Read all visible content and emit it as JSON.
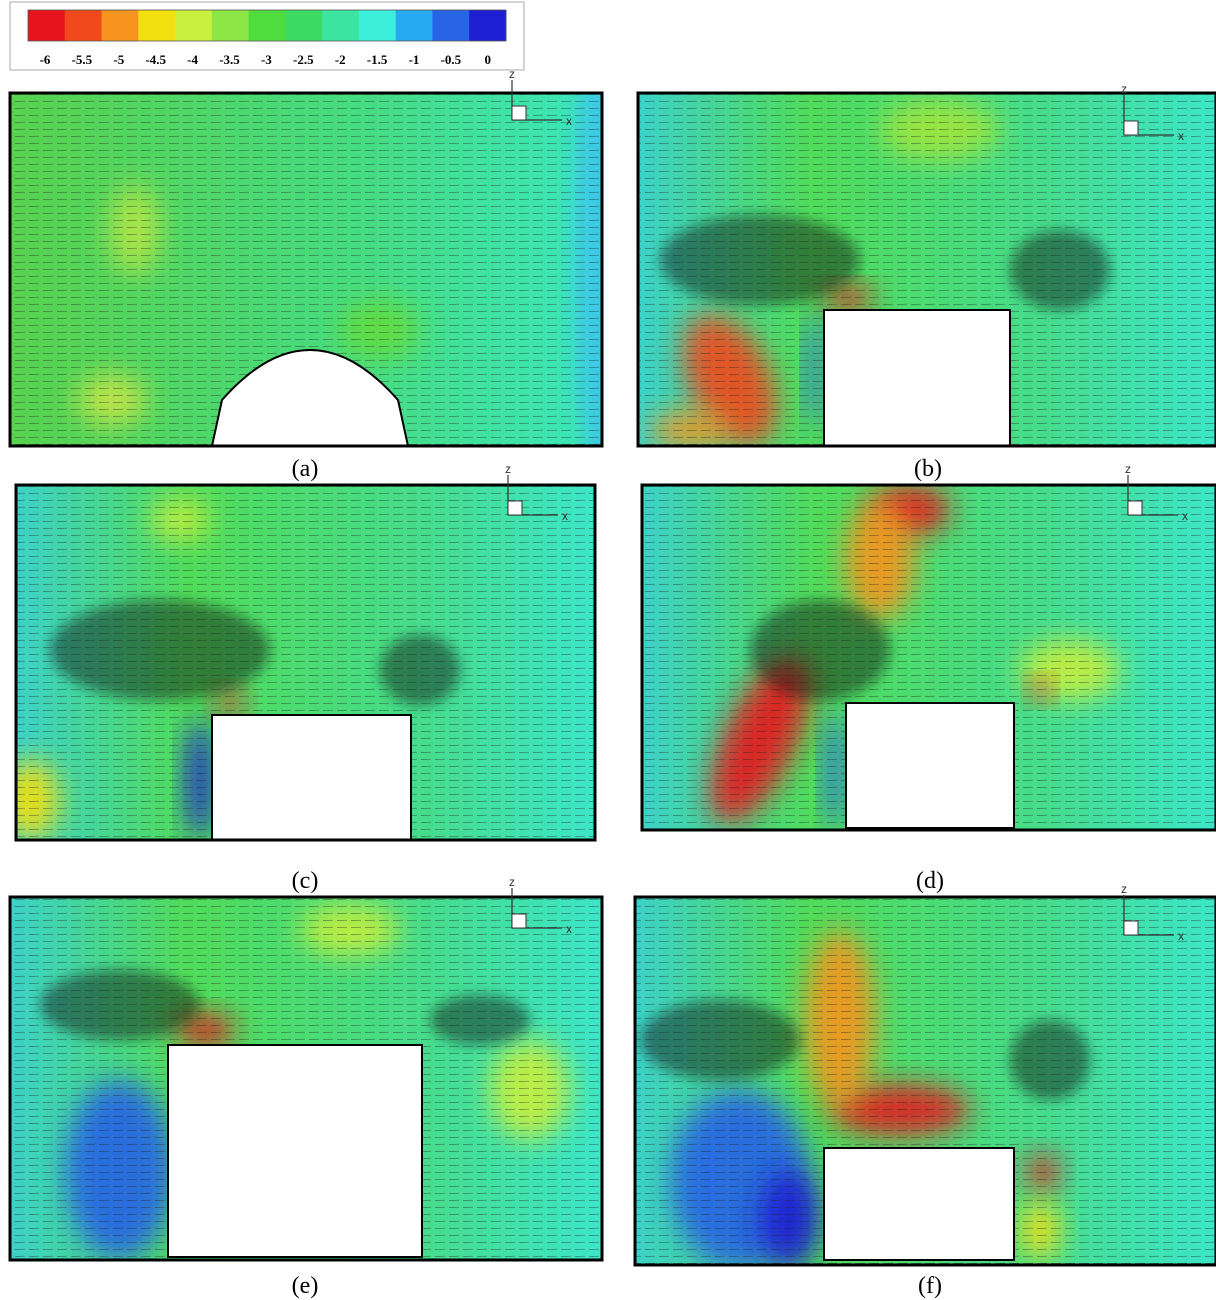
{
  "colorbar": {
    "ticks": [
      -6,
      -5.5,
      -5,
      -4.5,
      -4,
      -3.5,
      -3,
      -2.5,
      -2,
      -1.5,
      -1,
      -0.5,
      0
    ],
    "colors": [
      "#e8141c",
      "#f04a1c",
      "#f7941d",
      "#f4e010",
      "#c8f03c",
      "#8ce646",
      "#50dc3c",
      "#3cdc64",
      "#3ce6a0",
      "#3cf0dc",
      "#28aaf0",
      "#2864e6",
      "#1e1ed2"
    ]
  },
  "panels": [
    {
      "label": "(a)",
      "axis_z": "z",
      "axis_x": "x"
    },
    {
      "label": "(b)",
      "axis_z": "z",
      "axis_x": "x"
    },
    {
      "label": "(c)",
      "axis_z": "z",
      "axis_x": "x"
    },
    {
      "label": "(d)",
      "axis_z": "z",
      "axis_x": "x"
    },
    {
      "label": "(e)",
      "axis_z": "z",
      "axis_x": "x"
    },
    {
      "label": "(f)",
      "axis_z": "z",
      "axis_x": "x"
    }
  ]
}
